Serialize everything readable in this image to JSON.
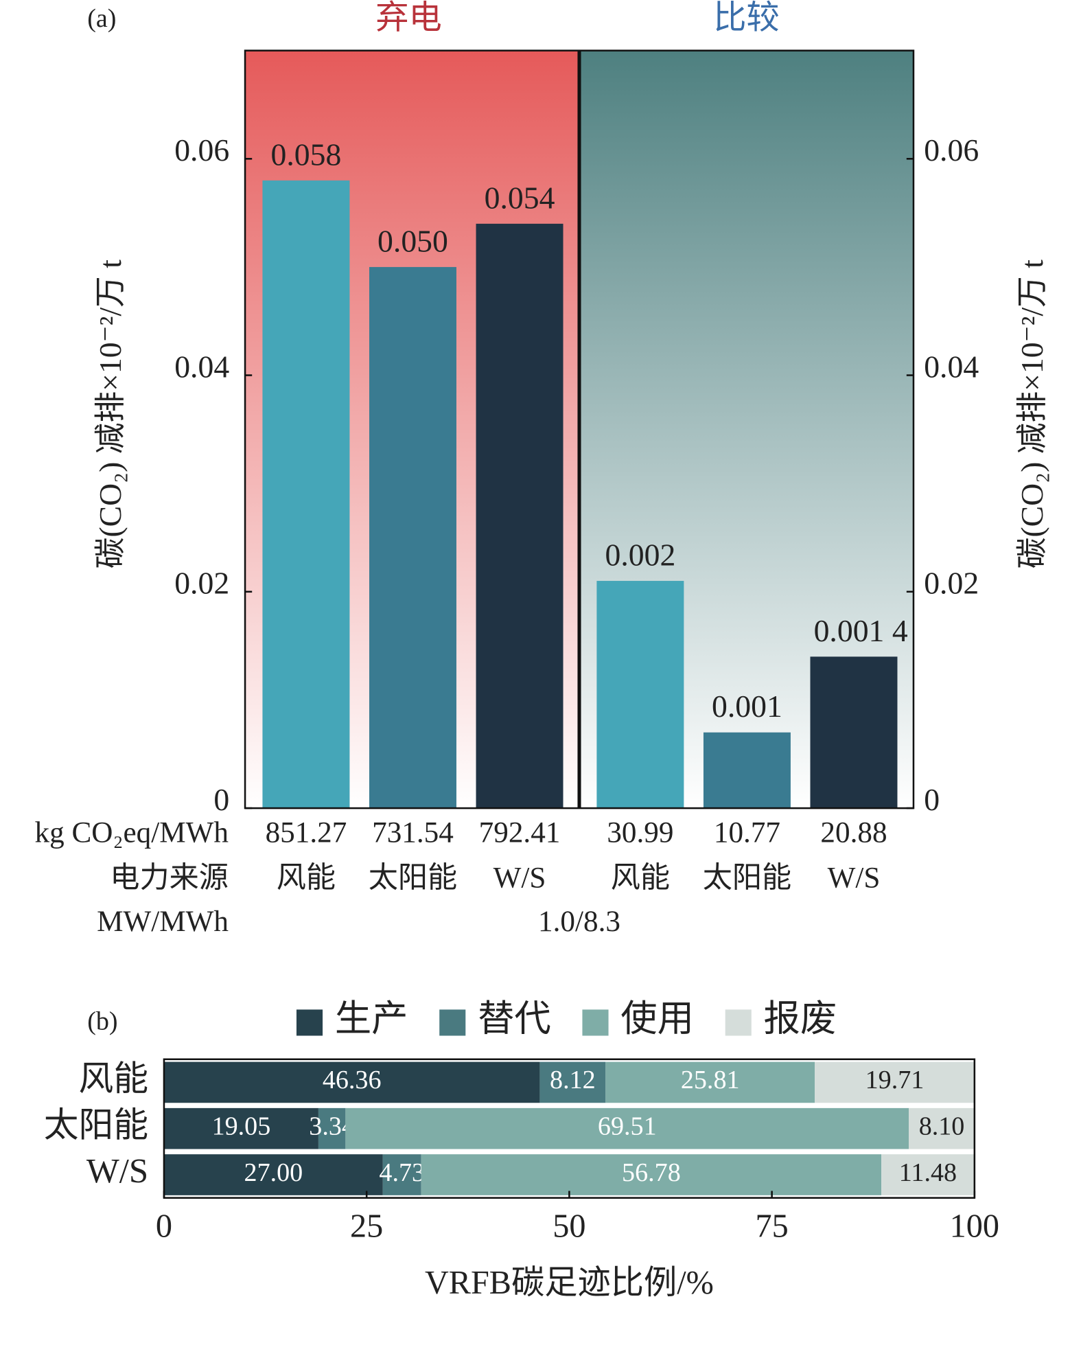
{
  "chart_data": [
    {
      "type": "grouped_bar",
      "panel": "(a)",
      "ylabel": "碳(CO₂) 减排×10⁻²/万 t",
      "ylim": [
        0,
        0.07
      ],
      "yticks": [
        0,
        0.02,
        0.04,
        0.06
      ],
      "y2lim": [
        0,
        0.07
      ],
      "y2ticks": [
        0,
        0.02,
        0.04,
        0.06
      ],
      "colors": [
        "#45a6b8",
        "#3a7b91",
        "#203344"
      ],
      "groups": [
        {
          "name": "弃电",
          "title_color": "#b8323a",
          "background": [
            "#e55a5a",
            "#ffffff"
          ],
          "axis": "y",
          "categories": [
            "风能",
            "太阳能",
            "W/S"
          ],
          "values": [
            0.058,
            0.05,
            0.054
          ],
          "value_labels": [
            "0.058",
            "0.050",
            "0.054"
          ],
          "emissions": [
            851.27,
            731.54,
            792.41
          ]
        },
        {
          "name": "比较",
          "title_color": "#3a6eaa",
          "background": [
            "#4e8080",
            "#ffffff"
          ],
          "axis": "y2",
          "categories": [
            "风能",
            "太阳能",
            "W/S"
          ],
          "values": [
            0.021,
            0.007,
            0.014
          ],
          "annotations": [
            "0.002",
            "0.001",
            "0.001 4"
          ],
          "emissions": [
            30.99,
            10.77,
            20.88
          ]
        }
      ],
      "emission_label": "kg CO₂eq/MWh",
      "source_label": "电力来源",
      "capacity_label": "MW/MWh",
      "capacity": "1.0/8.3"
    },
    {
      "type": "stacked_barh",
      "panel": "(b)",
      "categories": [
        "风能",
        "太阳能",
        "W/S"
      ],
      "series": [
        {
          "name": "生产",
          "color": "#27424d",
          "label_color": "#ffffff",
          "values": [
            46.36,
            19.05,
            27.0
          ],
          "value_labels": [
            "46.36",
            "19.05",
            "27.00"
          ]
        },
        {
          "name": "替代",
          "color": "#4a7a80",
          "label_color": "#ffffff",
          "values": [
            8.12,
            3.34,
            4.73
          ],
          "value_labels": [
            "8.12",
            "3.34",
            "4.73"
          ]
        },
        {
          "name": "使用",
          "color": "#7fada7",
          "label_color": "#ffffff",
          "values": [
            25.81,
            69.51,
            56.78
          ],
          "value_labels": [
            "25.81",
            "69.51",
            "56.78"
          ]
        },
        {
          "name": "报废",
          "color": "#d5ddda",
          "label_color": "#222222",
          "values": [
            19.71,
            8.1,
            11.48
          ],
          "value_labels": [
            "19.71",
            "8.10",
            "11.48"
          ]
        }
      ],
      "xlim": [
        0,
        100
      ],
      "xticks": [
        0,
        25,
        50,
        75,
        100
      ],
      "xlabel": "VRFB碳足迹比例/%"
    }
  ]
}
